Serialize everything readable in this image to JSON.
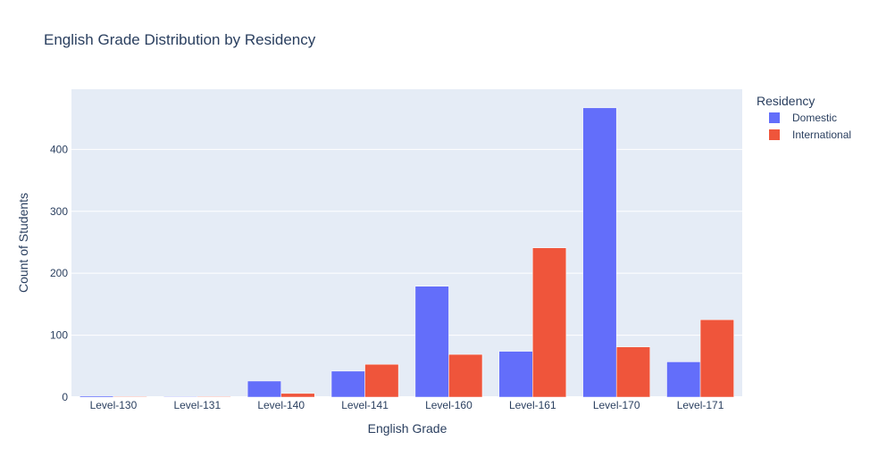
{
  "chart_data": {
    "type": "bar",
    "title": "English Grade Distribution by Residency",
    "xlabel": "English Grade",
    "ylabel": "Count of Students",
    "categories": [
      "Level-130",
      "Level-131",
      "Level-140",
      "Level-141",
      "Level-160",
      "Level-161",
      "Level-170",
      "Level-171"
    ],
    "series": [
      {
        "name": "Domestic",
        "color": "#636efa",
        "values": [
          2,
          1,
          26,
          42,
          179,
          74,
          467,
          57
        ]
      },
      {
        "name": "International",
        "color": "#ef553b",
        "values": [
          1,
          1,
          6,
          53,
          69,
          241,
          81,
          125
        ]
      }
    ],
    "ylim": [
      0,
      497
    ],
    "yticks": [
      0,
      100,
      200,
      300,
      400
    ],
    "grid": true,
    "legend": {
      "title": "Residency",
      "placement": "top-right"
    },
    "plot_background": "#e5ecf6"
  }
}
